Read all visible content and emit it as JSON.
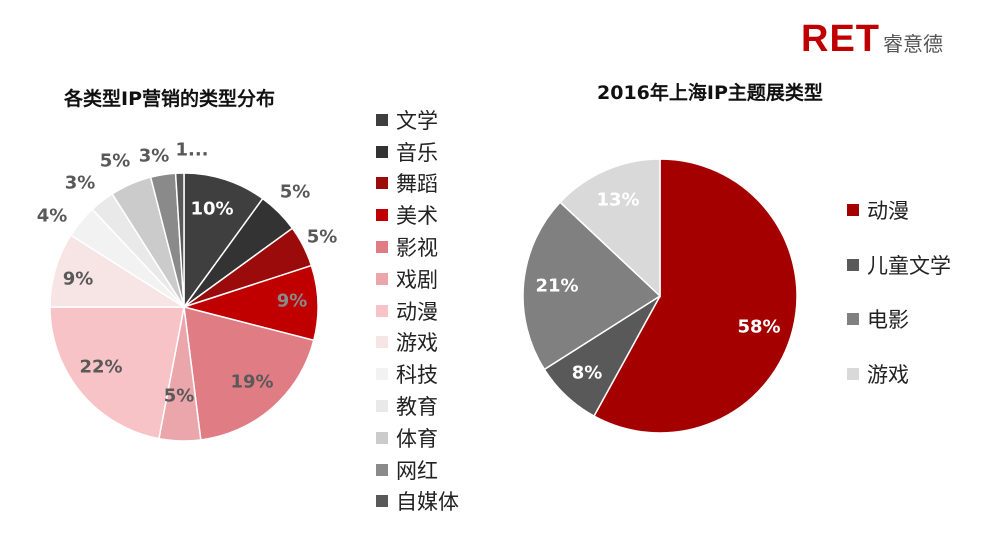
{
  "logo": {
    "main": "RET",
    "sub": "睿意德"
  },
  "chart_data": [
    {
      "type": "pie",
      "title": "各类型IP营销的类型分布",
      "slices": [
        {
          "name": "文学",
          "value": 10,
          "label": "10%",
          "color": "#3f3f3f"
        },
        {
          "name": "音乐",
          "value": 5,
          "label": "5%",
          "color": "#333333"
        },
        {
          "name": "舞蹈",
          "value": 5,
          "label": "5%",
          "color": "#9c0b0b"
        },
        {
          "name": "美术",
          "value": 9,
          "label": "9%",
          "color": "#c00000"
        },
        {
          "name": "影视",
          "value": 19,
          "label": "19%",
          "color": "#e07c84"
        },
        {
          "name": "戏剧",
          "value": 5,
          "label": "5%",
          "color": "#eaa6ab"
        },
        {
          "name": "动漫",
          "value": 22,
          "label": "22%",
          "color": "#f8c3c6"
        },
        {
          "name": "游戏",
          "value": 9,
          "label": "9%",
          "color": "#f7e4e5"
        },
        {
          "name": "科技",
          "value": 4,
          "label": "4%",
          "color": "#f2f2f2"
        },
        {
          "name": "教育",
          "value": 3,
          "label": "3%",
          "color": "#e9e9e9"
        },
        {
          "name": "体育",
          "value": 5,
          "label": "5%",
          "color": "#cbcbcb"
        },
        {
          "name": "网红",
          "value": 3,
          "label": "3%",
          "color": "#8a8a8a"
        },
        {
          "name": "自媒体",
          "value": 1,
          "label": "1...",
          "color": "#595959"
        }
      ],
      "legend_position": "right"
    },
    {
      "type": "pie",
      "title": "2016年上海IP主题展类型",
      "slices": [
        {
          "name": "动漫",
          "value": 58,
          "label": "58%",
          "color": "#a50000"
        },
        {
          "name": "儿童文学",
          "value": 8,
          "label": "8%",
          "color": "#595959"
        },
        {
          "name": "电影",
          "value": 21,
          "label": "21%",
          "color": "#808080"
        },
        {
          "name": "游戏",
          "value": 13,
          "label": "13%",
          "color": "#d9d9d9"
        }
      ],
      "legend_position": "right"
    }
  ]
}
